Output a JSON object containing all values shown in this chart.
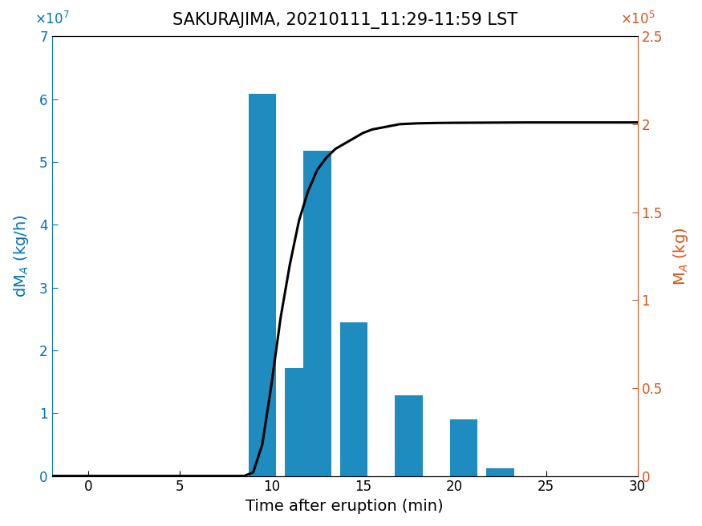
{
  "title": "SAKURAJIMA, 20210111_11:29-11:59 LST",
  "xlabel": "Time after eruption (min)",
  "ylabel_left": "dM$_A$ (kg/h)",
  "ylabel_right": "M$_A$ (kg)",
  "bar_centers": [
    9.5,
    11.5,
    12.5,
    14.5,
    17.5,
    20.5,
    22.5,
    28.0
  ],
  "bar_heights": [
    60800000.0,
    17200000.0,
    51800000.0,
    24500000.0,
    12800000.0,
    9000000.0,
    1200000.0,
    0.0
  ],
  "bar_width": 1.5,
  "bar_color": "#1f8cbf",
  "line_x": [
    -2,
    0,
    7.5,
    8.5,
    9.0,
    9.5,
    10.0,
    10.5,
    11.0,
    11.5,
    12.0,
    12.5,
    13.0,
    13.5,
    14.0,
    14.5,
    15.0,
    15.5,
    16.0,
    17.0,
    18.0,
    19.0,
    20.0,
    22.0,
    24.0,
    26.0,
    28.0,
    30.0
  ],
  "line_y": [
    0,
    0,
    0,
    0,
    2000,
    18000,
    52000,
    90000,
    120000,
    145000,
    162000,
    174000,
    181000,
    186000,
    189000,
    192000,
    195000,
    197000,
    198000,
    200000,
    200500,
    200700,
    200800,
    200900,
    201000,
    201000,
    201000,
    201000
  ],
  "line_color": "#000000",
  "line_width": 2.2,
  "xlim": [
    -2,
    30
  ],
  "ylim_left": [
    0,
    70000000.0
  ],
  "ylim_right": [
    0,
    250000.0
  ],
  "xticks": [
    0,
    5,
    10,
    15,
    20,
    25,
    30
  ],
  "yticks_left": [
    0,
    10000000.0,
    20000000.0,
    30000000.0,
    40000000.0,
    50000000.0,
    60000000.0,
    70000000.0
  ],
  "yticks_right": [
    0,
    50000.0,
    100000.0,
    150000.0,
    200000.0,
    250000.0
  ],
  "ytick_labels_right": [
    "0",
    "0.5",
    "1",
    "1.5",
    "2",
    "2.5"
  ],
  "title_fontsize": 15,
  "label_fontsize": 14,
  "tick_fontsize": 12,
  "left_axis_color": "#0072bd",
  "right_axis_color": "#d95319",
  "bg_color": "#ffffff"
}
